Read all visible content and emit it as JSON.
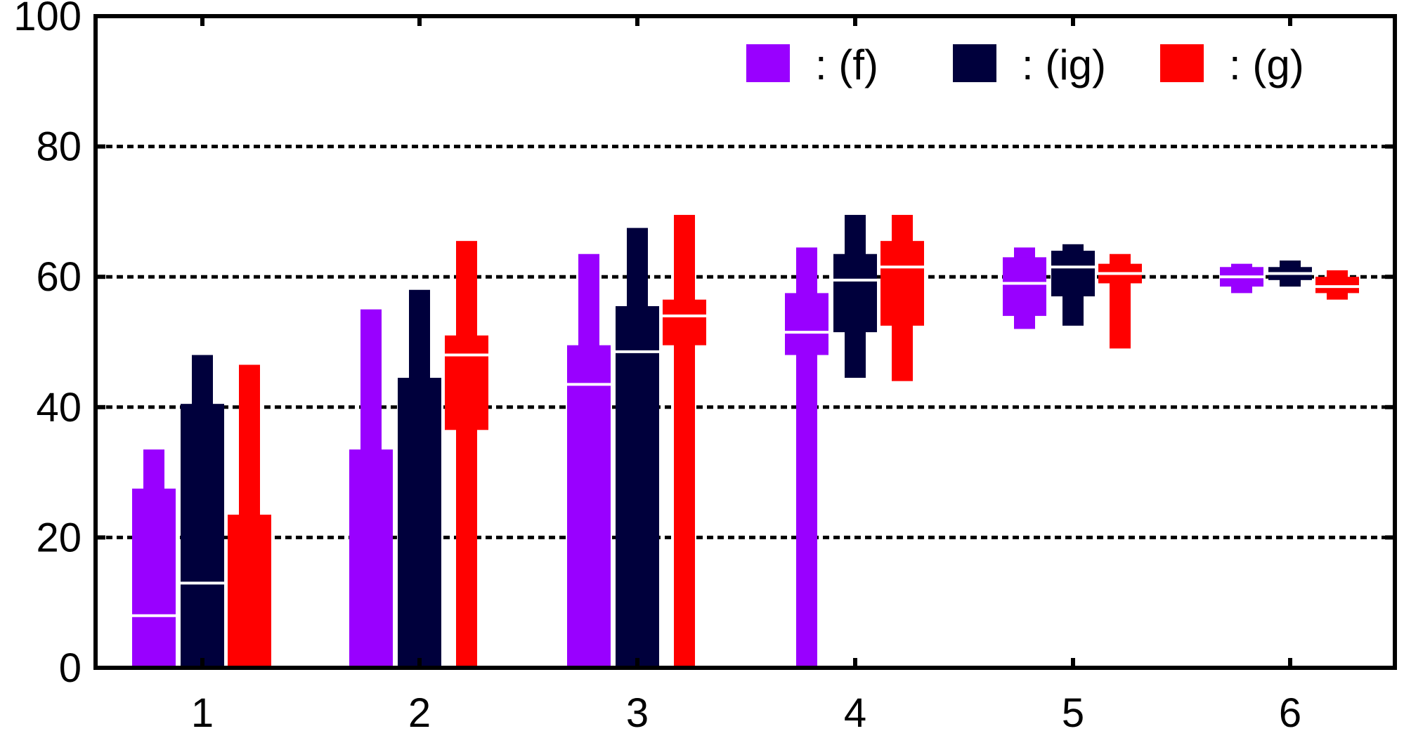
{
  "chart_data": {
    "type": "box",
    "categories": [
      "1",
      "2",
      "3",
      "4",
      "5",
      "6"
    ],
    "ylim": [
      0,
      100
    ],
    "yticks": [
      "0",
      "20",
      "40",
      "60",
      "80",
      "100"
    ],
    "grid": "horizontal dashed at 20, 40, 60, 80",
    "legend_position": "top-right",
    "series": [
      {
        "name": ": (f)",
        "color": "#9900ff",
        "boxes": [
          {
            "min": 0,
            "q1": 0,
            "median": 8,
            "q3": 27.5,
            "max": 33.5
          },
          {
            "min": 0,
            "q1": 0,
            "median": 0,
            "q3": 33.5,
            "max": 55
          },
          {
            "min": 0,
            "q1": 0,
            "median": 43.5,
            "q3": 49.5,
            "max": 63.5
          },
          {
            "min": 0,
            "q1": 48,
            "median": 51.5,
            "q3": 57.5,
            "max": 64.5
          },
          {
            "min": 52,
            "q1": 54,
            "median": 59,
            "q3": 63,
            "max": 64.5
          },
          {
            "min": 57.5,
            "q1": 58.5,
            "median": 60,
            "q3": 61.5,
            "max": 62
          }
        ]
      },
      {
        "name": ": (ig)",
        "color": "#00003c",
        "boxes": [
          {
            "min": 0,
            "q1": 0,
            "median": 13,
            "q3": 40.5,
            "max": 48
          },
          {
            "min": 0,
            "q1": 0,
            "median": 0,
            "q3": 44.5,
            "max": 58
          },
          {
            "min": 0,
            "q1": 0,
            "median": 48.5,
            "q3": 55.5,
            "max": 67.5
          },
          {
            "min": 44.5,
            "q1": 51.5,
            "median": 59.5,
            "q3": 63.5,
            "max": 69.5
          },
          {
            "min": 52.5,
            "q1": 57,
            "median": 61.5,
            "q3": 64,
            "max": 65
          },
          {
            "min": 58.5,
            "q1": 59.5,
            "median": 60.5,
            "q3": 61.5,
            "max": 62.5
          }
        ]
      },
      {
        "name": ": (g)",
        "color": "#ff0000",
        "boxes": [
          {
            "min": 0,
            "q1": 0,
            "median": 0,
            "q3": 23.5,
            "max": 46.5
          },
          {
            "min": 0,
            "q1": 36.5,
            "median": 48,
            "q3": 51,
            "max": 65.5
          },
          {
            "min": 0,
            "q1": 49.5,
            "median": 54,
            "q3": 56.5,
            "max": 69.5
          },
          {
            "min": 44,
            "q1": 52.5,
            "median": 61.5,
            "q3": 65.5,
            "max": 69.5
          },
          {
            "min": 49,
            "q1": 59,
            "median": 60.5,
            "q3": 62,
            "max": 63.5
          },
          {
            "min": 56.5,
            "q1": 57.5,
            "median": 58.5,
            "q3": 60,
            "max": 61
          }
        ]
      }
    ]
  }
}
